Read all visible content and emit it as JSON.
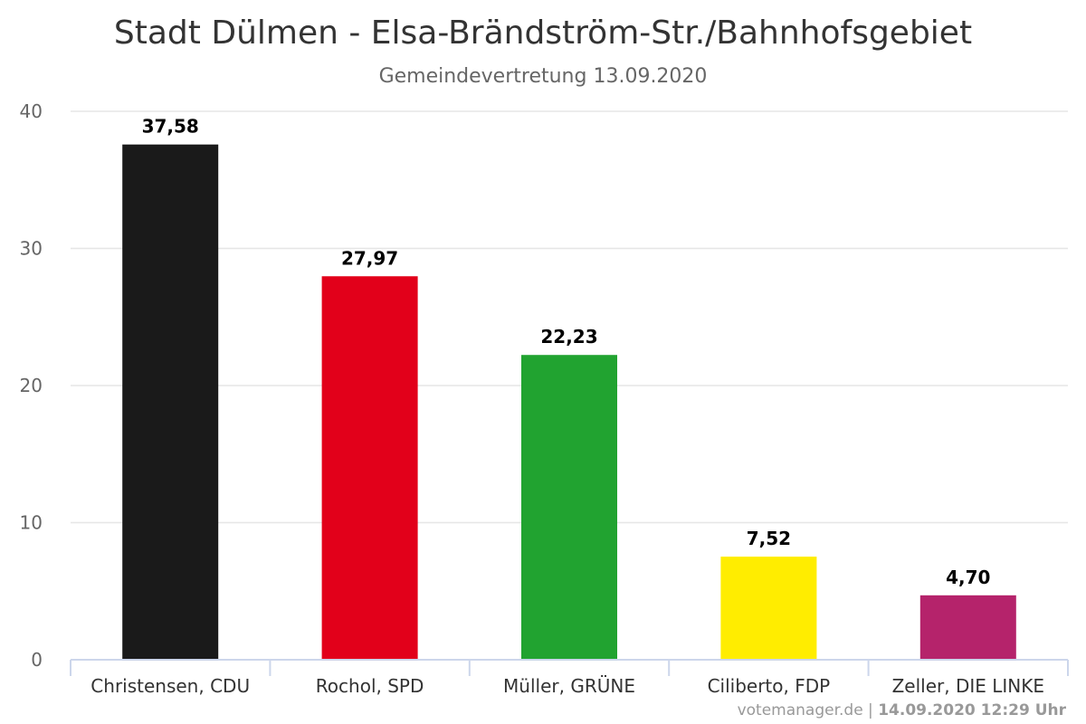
{
  "chart_data": {
    "type": "bar",
    "title": "Stadt Dülmen - Elsa-Brändström-Str./Bahnhofsgebiet",
    "subtitle": "Gemeindevertretung 13.09.2020",
    "categories": [
      "Christensen, CDU",
      "Rochol, SPD",
      "Müller, GRÜNE",
      "Ciliberto, FDP",
      "Zeller, DIE LINKE"
    ],
    "values": [
      37.58,
      27.97,
      22.23,
      7.52,
      4.7
    ],
    "data_labels": [
      "37,58",
      "27,97",
      "22,23",
      "7,52",
      "4,70"
    ],
    "colors": [
      "#1a1a1a",
      "#e2001a",
      "#21a330",
      "#ffed00",
      "#b5236b"
    ],
    "ylim": [
      0,
      40
    ],
    "yticks": [
      "0",
      "10",
      "20",
      "30",
      "40"
    ],
    "grid": true,
    "legend": "none"
  },
  "credits": {
    "source": "votemanager.de",
    "separator": " | ",
    "timestamp": "14.09.2020 12:29 Uhr"
  }
}
